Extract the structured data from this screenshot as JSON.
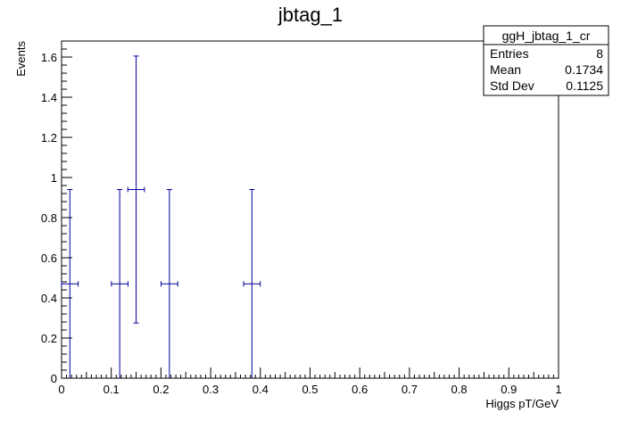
{
  "chart_data": {
    "type": "scatter",
    "title": "jbtag_1",
    "xlabel": "Higgs pT/GeV",
    "ylabel": "Events",
    "xlim": [
      0,
      1
    ],
    "ylim": [
      0,
      1.68
    ],
    "x_ticks": [
      "0",
      "0.1",
      "0.2",
      "0.3",
      "0.4",
      "0.5",
      "0.6",
      "0.7",
      "0.8",
      "0.9",
      "1"
    ],
    "y_ticks": [
      "0",
      "0.2",
      "0.4",
      "0.6",
      "0.8",
      "1",
      "1.2",
      "1.4",
      "1.6"
    ],
    "grid": false,
    "marker_color": "#000099",
    "points": [
      {
        "x": 0.0167,
        "y": 0.47,
        "xerr": 0.0167,
        "ylow": 0.0,
        "yhigh": 0.94
      },
      {
        "x": 0.117,
        "y": 0.47,
        "xerr": 0.0167,
        "ylow": 0.0,
        "yhigh": 0.94
      },
      {
        "x": 0.15,
        "y": 0.94,
        "xerr": 0.0167,
        "ylow": 0.275,
        "yhigh": 1.605
      },
      {
        "x": 0.217,
        "y": 0.47,
        "xerr": 0.0167,
        "ylow": 0.0,
        "yhigh": 0.94
      },
      {
        "x": 0.383,
        "y": 0.47,
        "xerr": 0.0167,
        "ylow": 0.0,
        "yhigh": 0.94
      }
    ],
    "stats_box": {
      "name": "ggH_jbtag_1_cr",
      "rows": [
        {
          "label": "Entries",
          "value": "8"
        },
        {
          "label": "Mean",
          "value": "0.1734"
        },
        {
          "label": "Std Dev",
          "value": "0.1125"
        }
      ]
    }
  }
}
